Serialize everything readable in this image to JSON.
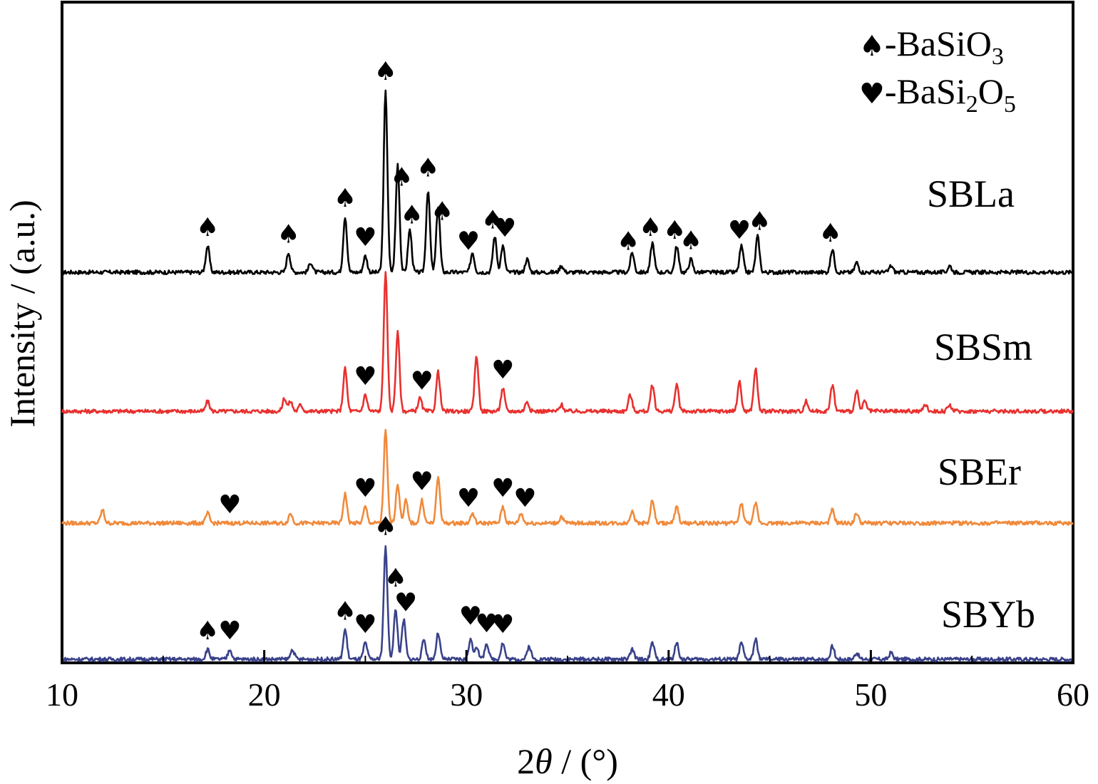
{
  "chart_data": {
    "type": "line",
    "title": "",
    "xlabel": {
      "prefix": "2",
      "symbol": "θ",
      "suffix": " / (°)"
    },
    "ylabel": "Intensity / (a.u.)",
    "xlim": [
      10,
      60
    ],
    "xticks": [
      "10",
      "20",
      "30",
      "40",
      "50",
      "60"
    ],
    "yticks_shown": false,
    "grid": false,
    "legend": {
      "placement": "top-right",
      "entries": [
        {
          "marker": "spade-marker",
          "symbol": "♠",
          "prefix": "-BaSiO",
          "sub": "3",
          "rest": ""
        },
        {
          "marker": "heart-marker",
          "symbol": "♥",
          "prefix": "-BaSi",
          "sub": "2",
          "mid": "O",
          "sub2": "5"
        }
      ]
    },
    "series": [
      {
        "name": "SBLa",
        "color": "#000000",
        "baseline": 0.0,
        "peaks": [
          [
            17.2,
            0.08
          ],
          [
            21.2,
            0.06
          ],
          [
            22.3,
            0.03
          ],
          [
            24.0,
            0.17
          ],
          [
            25.0,
            0.05
          ],
          [
            26.0,
            0.55
          ],
          [
            26.6,
            0.33
          ],
          [
            27.2,
            0.13
          ],
          [
            28.1,
            0.25
          ],
          [
            28.6,
            0.2
          ],
          [
            30.3,
            0.06
          ],
          [
            31.4,
            0.11
          ],
          [
            31.8,
            0.08
          ],
          [
            33.0,
            0.04
          ],
          [
            34.7,
            0.02
          ],
          [
            38.2,
            0.06
          ],
          [
            39.2,
            0.09
          ],
          [
            40.4,
            0.08
          ],
          [
            41.1,
            0.04
          ],
          [
            43.6,
            0.08
          ],
          [
            44.4,
            0.11
          ],
          [
            48.1,
            0.07
          ],
          [
            49.3,
            0.03
          ],
          [
            51.0,
            0.02
          ],
          [
            53.9,
            0.02
          ]
        ],
        "markers": [
          {
            "x": 17.2,
            "type": "spade"
          },
          {
            "x": 21.2,
            "type": "spade"
          },
          {
            "x": 24.0,
            "type": "spade"
          },
          {
            "x": 25.0,
            "type": "heart"
          },
          {
            "x": 26.0,
            "type": "spade"
          },
          {
            "x": 26.8,
            "type": "spade"
          },
          {
            "x": 27.3,
            "type": "spade"
          },
          {
            "x": 28.1,
            "type": "spade"
          },
          {
            "x": 28.8,
            "type": "spade"
          },
          {
            "x": 30.1,
            "type": "heart"
          },
          {
            "x": 31.3,
            "type": "spade"
          },
          {
            "x": 31.9,
            "type": "heart"
          },
          {
            "x": 38.0,
            "type": "spade"
          },
          {
            "x": 39.1,
            "type": "spade"
          },
          {
            "x": 40.3,
            "type": "spade"
          },
          {
            "x": 41.1,
            "type": "spade"
          },
          {
            "x": 43.5,
            "type": "heart"
          },
          {
            "x": 44.5,
            "type": "spade"
          },
          {
            "x": 48.0,
            "type": "spade"
          }
        ]
      },
      {
        "name": "SBSm",
        "color": "#e8312f",
        "baseline": 0.0,
        "peaks": [
          [
            17.2,
            0.03
          ],
          [
            21.0,
            0.04
          ],
          [
            21.3,
            0.03
          ],
          [
            21.8,
            0.02
          ],
          [
            24.0,
            0.13
          ],
          [
            25.0,
            0.05
          ],
          [
            26.0,
            0.42
          ],
          [
            26.6,
            0.24
          ],
          [
            27.7,
            0.04
          ],
          [
            28.6,
            0.12
          ],
          [
            30.5,
            0.17
          ],
          [
            31.8,
            0.07
          ],
          [
            33.0,
            0.03
          ],
          [
            34.7,
            0.02
          ],
          [
            38.1,
            0.05
          ],
          [
            39.2,
            0.08
          ],
          [
            40.4,
            0.08
          ],
          [
            43.5,
            0.09
          ],
          [
            44.3,
            0.13
          ],
          [
            46.8,
            0.03
          ],
          [
            48.1,
            0.08
          ],
          [
            49.3,
            0.06
          ],
          [
            49.7,
            0.03
          ],
          [
            52.7,
            0.02
          ],
          [
            53.9,
            0.02
          ]
        ],
        "markers": [
          {
            "x": 25.0,
            "type": "heart"
          },
          {
            "x": 27.8,
            "type": "heart"
          },
          {
            "x": 31.8,
            "type": "heart"
          }
        ]
      },
      {
        "name": "SBEr",
        "color": "#f08a3c",
        "baseline": 0.0,
        "peaks": [
          [
            12.0,
            0.04
          ],
          [
            17.2,
            0.03
          ],
          [
            21.3,
            0.03
          ],
          [
            24.0,
            0.09
          ],
          [
            25.0,
            0.05
          ],
          [
            26.0,
            0.28
          ],
          [
            26.6,
            0.12
          ],
          [
            27.0,
            0.07
          ],
          [
            27.8,
            0.07
          ],
          [
            28.6,
            0.14
          ],
          [
            30.3,
            0.03
          ],
          [
            31.8,
            0.05
          ],
          [
            32.7,
            0.03
          ],
          [
            34.7,
            0.02
          ],
          [
            38.2,
            0.04
          ],
          [
            39.2,
            0.07
          ],
          [
            40.4,
            0.05
          ],
          [
            43.6,
            0.06
          ],
          [
            44.3,
            0.06
          ],
          [
            48.1,
            0.04
          ],
          [
            49.3,
            0.03
          ]
        ],
        "markers": [
          {
            "x": 18.3,
            "type": "heart"
          },
          {
            "x": 25.0,
            "type": "heart"
          },
          {
            "x": 27.8,
            "type": "heart"
          },
          {
            "x": 30.1,
            "type": "heart"
          },
          {
            "x": 31.8,
            "type": "heart"
          },
          {
            "x": 32.9,
            "type": "heart"
          }
        ]
      },
      {
        "name": "SBYb",
        "color": "#3a428a",
        "baseline": 0.0,
        "peaks": [
          [
            17.2,
            0.03
          ],
          [
            18.3,
            0.03
          ],
          [
            21.4,
            0.03
          ],
          [
            24.0,
            0.09
          ],
          [
            25.0,
            0.05
          ],
          [
            26.0,
            0.34
          ],
          [
            26.5,
            0.15
          ],
          [
            26.9,
            0.12
          ],
          [
            27.9,
            0.06
          ],
          [
            28.6,
            0.08
          ],
          [
            30.2,
            0.06
          ],
          [
            30.5,
            0.04
          ],
          [
            31.0,
            0.05
          ],
          [
            31.8,
            0.05
          ],
          [
            33.1,
            0.04
          ],
          [
            38.2,
            0.03
          ],
          [
            39.2,
            0.05
          ],
          [
            40.4,
            0.05
          ],
          [
            43.6,
            0.05
          ],
          [
            44.3,
            0.06
          ],
          [
            48.1,
            0.04
          ],
          [
            49.3,
            0.02
          ],
          [
            51.0,
            0.02
          ]
        ],
        "markers": [
          {
            "x": 17.2,
            "type": "spade"
          },
          {
            "x": 18.3,
            "type": "heart"
          },
          {
            "x": 24.0,
            "type": "spade"
          },
          {
            "x": 25.0,
            "type": "heart"
          },
          {
            "x": 26.0,
            "type": "spade"
          },
          {
            "x": 26.5,
            "type": "spade"
          },
          {
            "x": 27.0,
            "type": "heart"
          },
          {
            "x": 30.2,
            "type": "heart"
          },
          {
            "x": 31.0,
            "type": "heart"
          },
          {
            "x": 31.8,
            "type": "heart"
          }
        ]
      }
    ]
  }
}
